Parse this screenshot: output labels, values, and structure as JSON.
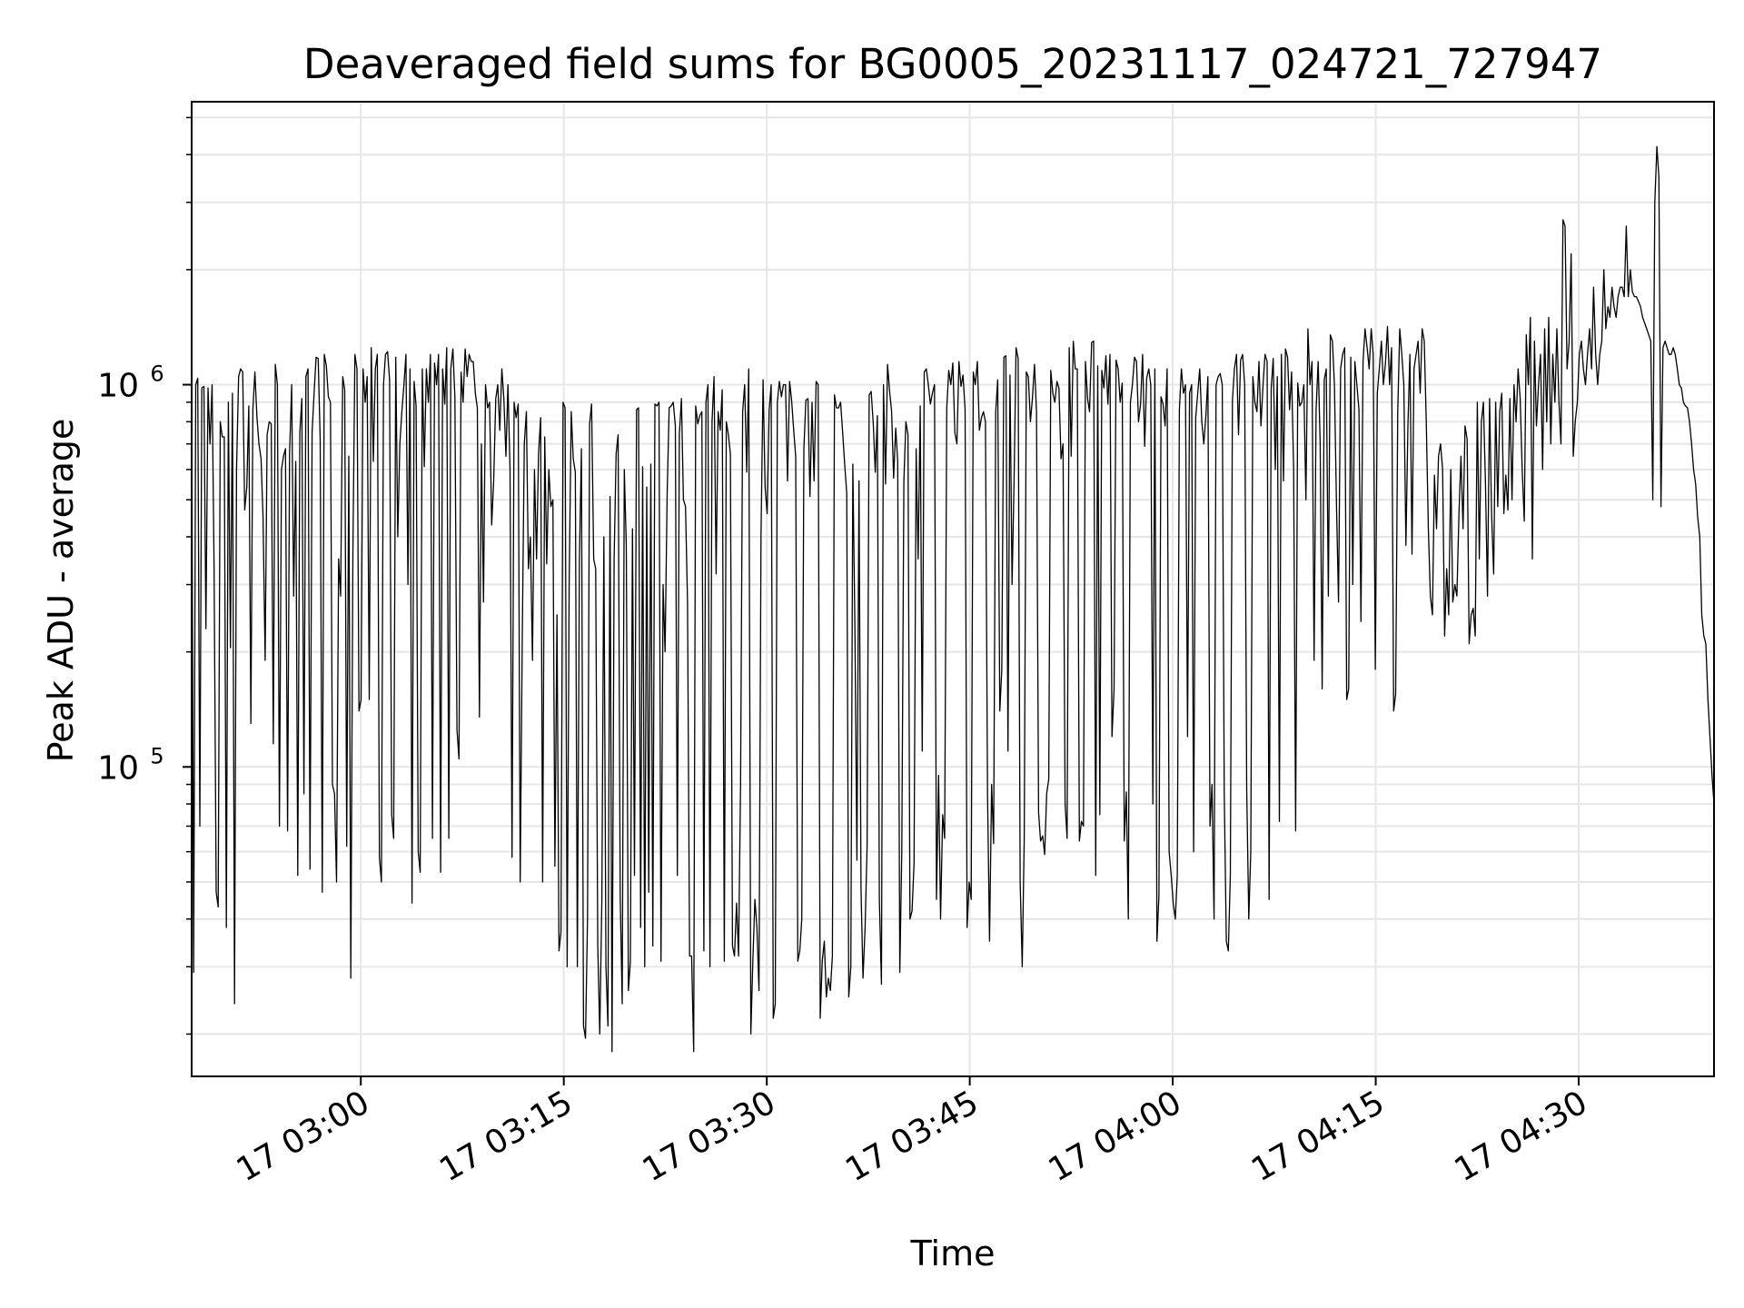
{
  "chart_data": {
    "type": "line",
    "title": "Deaveraged field sums for BG0005_20231117_024721_727947",
    "xlabel": "Time",
    "ylabel": "Peak ADU - average",
    "x_ticks": [
      "17 03:00",
      "17 03:15",
      "17 03:30",
      "17 03:45",
      "17 04:00",
      "17 04:15",
      "17 04:30"
    ],
    "y_ticks": [
      {
        "base": "10",
        "exp": "5",
        "value": 100000
      },
      {
        "base": "10",
        "exp": "6",
        "value": 1000000
      }
    ],
    "yscale": "log",
    "xlim": [
      "2023-11-17 02:47:30",
      "2023-11-17 04:40:00"
    ],
    "ylim": [
      15500,
      5500000
    ],
    "grid": true,
    "line_color": "#000000",
    "series": [
      {
        "x_start": "2023-11-17 02:47:30",
        "x_end": "2023-11-17 04:40:00",
        "values": [
          980000,
          29000,
          1000000,
          1040000,
          70000,
          980000,
          990000,
          230000,
          980000,
          700000,
          1000000,
          330000,
          47000,
          43000,
          800000,
          730000,
          730000,
          38000,
          900000,
          205000,
          950000,
          24000,
          600000,
          1050000,
          1100000,
          1080000,
          470000,
          540000,
          880000,
          130000,
          860000,
          1080000,
          820000,
          700000,
          640000,
          450000,
          190000,
          740000,
          800000,
          790000,
          115000,
          1130000,
          1000000,
          70000,
          600000,
          650000,
          680000,
          68000,
          660000,
          1000000,
          280000,
          630000,
          52000,
          750000,
          920000,
          85000,
          1050000,
          1100000,
          54000,
          750000,
          950000,
          1180000,
          1170000,
          720000,
          47000,
          1200000,
          1120000,
          930000,
          900000,
          90000,
          85000,
          50000,
          350000,
          280000,
          1050000,
          970000,
          62000,
          650000,
          28000,
          360000,
          1200000,
          1100000,
          140000,
          150000,
          1100000,
          900000,
          1050000,
          150000,
          1250000,
          630000,
          1100000,
          1200000,
          58000,
          50000,
          1000000,
          1200000,
          1220000,
          1030000,
          75000,
          65000,
          1180000,
          400000,
          700000,
          850000,
          1000000,
          1200000,
          300000,
          1100000,
          44000,
          1020000,
          880000,
          60000,
          53000,
          1100000,
          610000,
          1100000,
          900000,
          1200000,
          65000,
          1140000,
          1000000,
          1200000,
          53000,
          1100000,
          890000,
          1250000,
          65000,
          1100000,
          1240000,
          930000,
          125000,
          105000,
          1080000,
          900000,
          1240000,
          1050000,
          1200000,
          1150000,
          1150000,
          950000,
          870000,
          135000,
          700000,
          270000,
          1000000,
          870000,
          900000,
          430000,
          560000,
          920000,
          1000000,
          760000,
          1100000,
          920000,
          650000,
          1000000,
          600000,
          58000,
          900000,
          820000,
          890000,
          50000,
          220000,
          700000,
          850000,
          330000,
          400000,
          190000,
          600000,
          350000,
          660000,
          820000,
          50000,
          730000,
          340000,
          600000,
          480000,
          500000,
          55000,
          250000,
          33000,
          37000,
          900000,
          870000,
          30000,
          300000,
          850000,
          640000,
          590000,
          30000,
          350000,
          680000,
          21000,
          19500,
          40000,
          790000,
          890000,
          350000,
          330000,
          34000,
          20000,
          45000,
          400000,
          30000,
          21000,
          510000,
          18000,
          350000,
          660000,
          740000,
          46000,
          24000,
          600000,
          380000,
          26000,
          31000,
          420000,
          52000,
          860000,
          870000,
          38000,
          610000,
          30000,
          540000,
          47000,
          620000,
          34000,
          890000,
          880000,
          900000,
          31000,
          300000,
          200000,
          520000,
          870000,
          880000,
          900000,
          780000,
          52000,
          740000,
          920000,
          500000,
          480000,
          270000,
          32000,
          32000,
          18000,
          880000,
          790000,
          830000,
          850000,
          33000,
          900000,
          1000000,
          30000,
          800000,
          1050000,
          320000,
          850000,
          760000,
          970000,
          31000,
          800000,
          740000,
          660000,
          34000,
          32000,
          44000,
          32000,
          90000,
          850000,
          1000000,
          590000,
          1100000,
          20000,
          31000,
          45000,
          38000,
          26000,
          400000,
          1030000,
          540000,
          460000,
          860000,
          1000000,
          22000,
          24000,
          900000,
          1020000,
          930000,
          1000000,
          1000000,
          560000,
          1020000,
          910000,
          760000,
          650000,
          31000,
          33000,
          40000,
          680000,
          910000,
          920000,
          510000,
          900000,
          560000,
          1020000,
          1000000,
          22000,
          31000,
          35000,
          25000,
          28000,
          26000,
          32000,
          940000,
          870000,
          870000,
          900000,
          750000,
          620000,
          520000,
          25000,
          30000,
          620000,
          230000,
          57000,
          560000,
          48000,
          28000,
          38000,
          62000,
          940000,
          960000,
          790000,
          590000,
          830000,
          45000,
          27000,
          1000000,
          550000,
          1130000,
          960000,
          850000,
          570000,
          770000,
          630000,
          29000,
          60000,
          560000,
          800000,
          740000,
          40000,
          42000,
          56000,
          680000,
          350000,
          880000,
          110000,
          1080000,
          1100000,
          1000000,
          890000,
          950000,
          1000000,
          45000,
          95000,
          40000,
          75000,
          65000,
          870000,
          1090000,
          1000000,
          1140000,
          750000,
          700000,
          1150000,
          990000,
          1060000,
          860000,
          38000,
          50000,
          45000,
          1080000,
          1000000,
          1150000,
          760000,
          820000,
          850000,
          800000,
          85000,
          35000,
          90000,
          63000,
          850000,
          1030000,
          140000,
          180000,
          1180000,
          1190000,
          110000,
          1060000,
          300000,
          560000,
          1250000,
          1170000,
          50000,
          30000,
          65000,
          1080000,
          1050000,
          800000,
          920000,
          1130000,
          850000,
          76000,
          64000,
          66000,
          59000,
          85000,
          93000,
          1090000,
          950000,
          900000,
          1020000,
          980000,
          640000,
          700000,
          80000,
          65000,
          1250000,
          650000,
          1300000,
          1100000,
          1100000,
          64000,
          72000,
          70000,
          1150000,
          920000,
          850000,
          1290000,
          1300000,
          52000,
          1120000,
          75000,
          1090000,
          980000,
          1190000,
          890000,
          1200000,
          120000,
          160000,
          1160000,
          1100000,
          900000,
          1010000,
          64000,
          86000,
          40000,
          900000,
          1000000,
          1180000,
          1150000,
          800000,
          890000,
          1200000,
          690000,
          1040000,
          1100000,
          1000000,
          80000,
          1100000,
          35000,
          46000,
          930000,
          890000,
          780000,
          1100000,
          60000,
          52000,
          44000,
          40000,
          52000,
          860000,
          1100000,
          950000,
          1000000,
          120000,
          950000,
          1000000,
          60000,
          820000,
          950000,
          1100000,
          800000,
          700000,
          830000,
          1050000,
          70000,
          90000,
          40000,
          1000000,
          1050000,
          1070000,
          1000000,
          85000,
          35000,
          33000,
          52000,
          910000,
          1100000,
          1200000,
          740000,
          1160000,
          1200000,
          1000000,
          88000,
          40000,
          60000,
          1050000,
          900000,
          850000,
          1150000,
          780000,
          1000000,
          1200000,
          1150000,
          45000,
          980000,
          1170000,
          600000,
          1050000,
          72000,
          1200000,
          560000,
          1240000,
          1180000,
          860000,
          1080000,
          600000,
          68000,
          1010000,
          880000,
          900000,
          1000000,
          500000,
          1400000,
          1000000,
          1150000,
          190000,
          860000,
          1150000,
          700000,
          160000,
          1030000,
          1100000,
          280000,
          1350000,
          1300000,
          1000000,
          480000,
          270000,
          1100000,
          1200000,
          1250000,
          150000,
          160000,
          1180000,
          300000,
          1150000,
          1000000,
          860000,
          240000,
          1150000,
          1400000,
          1250000,
          1100000,
          1400000,
          1200000,
          180000,
          950000,
          1100000,
          1300000,
          1000000,
          1140000,
          1420000,
          1000000,
          1250000,
          140000,
          155000,
          850000,
          1400000,
          1200000,
          1000000,
          380000,
          780000,
          1200000,
          360000,
          1100000,
          1200000,
          1300000,
          950000,
          1400000,
          1300000,
          800000,
          420000,
          280000,
          250000,
          580000,
          420000,
          650000,
          700000,
          600000,
          220000,
          330000,
          250000,
          600000,
          270000,
          300000,
          280000,
          460000,
          650000,
          420000,
          780000,
          720000,
          210000,
          250000,
          260000,
          220000,
          900000,
          350000,
          800000,
          900000,
          550000,
          280000,
          920000,
          460000,
          320000,
          900000,
          480000,
          850000,
          950000,
          460000,
          580000,
          470000,
          920000,
          500000,
          1000000,
          800000,
          1100000,
          920000,
          600000,
          440000,
          1350000,
          1000000,
          1500000,
          350000,
          1300000,
          780000,
          1000000,
          1200000,
          600000,
          1400000,
          800000,
          1500000,
          700000,
          1200000,
          900000,
          1400000,
          900000,
          700000,
          2700000,
          2600000,
          1100000,
          1300000,
          2200000,
          650000,
          800000,
          900000,
          1200000,
          1300000,
          1100000,
          1000000,
          1200000,
          1400000,
          1100000,
          1800000,
          1200000,
          1000000,
          1200000,
          1300000,
          2000000,
          1400000,
          1600000,
          1500000,
          1800000,
          1600000,
          1500000,
          1700000,
          1800000,
          1800000,
          1700000,
          2600000,
          1700000,
          2000000,
          1750000,
          1700000,
          1700000,
          1650000,
          1600000,
          1500000,
          1450000,
          1400000,
          1350000,
          1300000,
          500000,
          3000000,
          4200000,
          3500000,
          480000,
          1250000,
          1300000,
          1250000,
          1200000,
          1200000,
          1250000,
          1200000,
          1100000,
          1000000,
          980000,
          900000,
          880000,
          870000,
          800000,
          700000,
          600000,
          550000,
          450000,
          400000,
          250000,
          220000,
          210000,
          150000,
          120000,
          95000,
          80000
        ]
      }
    ]
  }
}
